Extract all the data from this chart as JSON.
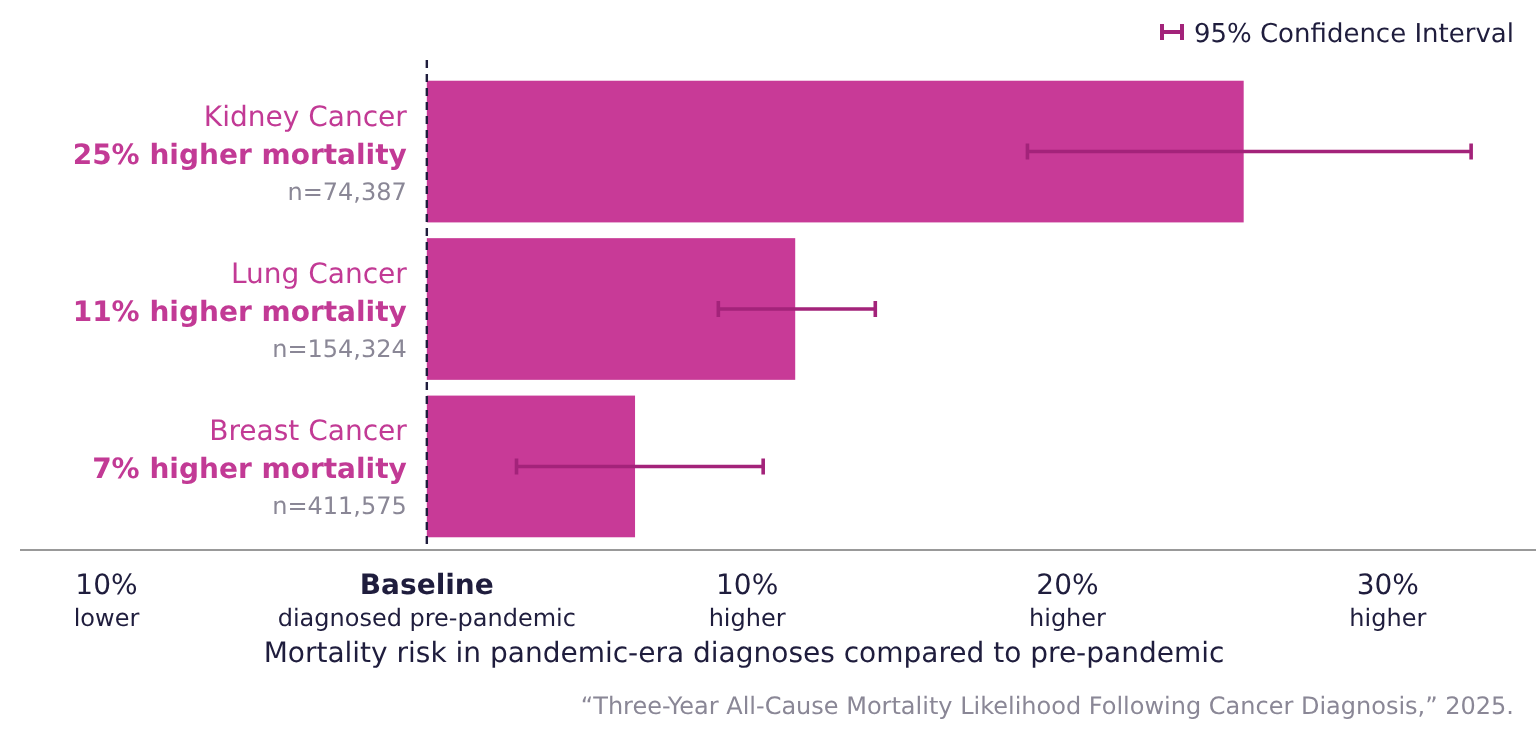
{
  "chart_data": {
    "type": "bar",
    "orientation": "horizontal",
    "categories": [
      "Kidney Cancer",
      "Lung Cancer",
      "Breast Cancer"
    ],
    "values": [
      25.5,
      11.5,
      6.5
    ],
    "color": "#c83a97",
    "value_labels": [
      "25% higher mortality",
      "11% higher mortality",
      "7% higher mortality"
    ],
    "errors": [
      [
        18.75,
        32.6
      ],
      [
        9.1,
        14.0
      ],
      [
        2.8,
        10.5
      ]
    ],
    "xlim": [
      -12.7,
      35
    ],
    "xticks": [
      {
        "value": -10,
        "label": "10%\nlower"
      },
      {
        "value": 0,
        "label": "Baseline\ndiagnosed pre-pandemic"
      },
      {
        "value": 10,
        "label": "10%\nhigher"
      },
      {
        "value": 20,
        "label": "20%\nhigher"
      },
      {
        "value": 30,
        "label": "30%\nhigher"
      }
    ],
    "xlabel": "Mortality risk in pandemic-era diagnoses compared to pre-pandemic",
    "ref_lines": [
      {
        "axis": "x",
        "value": 0,
        "line_style": "dashed",
        "color": "#1f1d3d"
      }
    ],
    "legend_title": "95% Confidence Interval",
    "annotations": [
      "n=74,387",
      "n=154,324",
      "n=411,575",
      "“Three-Year All-Cause Mortality Likelihood Following Cancer Diagnosis,” 2025."
    ],
    "grid": false
  }
}
